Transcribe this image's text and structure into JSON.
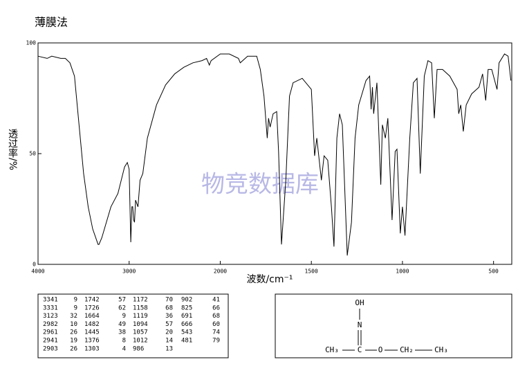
{
  "chart_data": {
    "type": "line",
    "title": "薄膜法",
    "xlabel": "波数/cm⁻¹",
    "ylabel": "透过率/%",
    "watermark": "物竞数据库",
    "xlim": [
      4000,
      400
    ],
    "x_scale_break": 2000,
    "xticks": [
      4000,
      3000,
      2000,
      1500,
      1000,
      500
    ],
    "ylim": [
      0,
      100
    ],
    "yticks": [
      0,
      50,
      100
    ],
    "x": [
      4000,
      3900,
      3850,
      3750,
      3700,
      3650,
      3600,
      3550,
      3500,
      3450,
      3400,
      3341,
      3331,
      3300,
      3200,
      3123,
      3050,
      3020,
      3000,
      2982,
      2970,
      2961,
      2950,
      2941,
      2930,
      2903,
      2880,
      2850,
      2800,
      2700,
      2600,
      2500,
      2400,
      2300,
      2200,
      2150,
      2120,
      2100,
      2000,
      1950,
      1900,
      1890,
      1850,
      1800,
      1780,
      1760,
      1742,
      1735,
      1726,
      1710,
      1690,
      1680,
      1664,
      1640,
      1620,
      1600,
      1550,
      1500,
      1482,
      1470,
      1445,
      1430,
      1410,
      1390,
      1376,
      1360,
      1345,
      1330,
      1303,
      1280,
      1260,
      1240,
      1200,
      1180,
      1172,
      1165,
      1158,
      1140,
      1119,
      1110,
      1094,
      1080,
      1057,
      1040,
      1030,
      1012,
      1000,
      986,
      960,
      940,
      920,
      902,
      880,
      860,
      840,
      825,
      810,
      780,
      740,
      700,
      691,
      680,
      666,
      650,
      620,
      580,
      560,
      543,
      530,
      510,
      481,
      470,
      440,
      420,
      405
    ],
    "series": [
      {
        "name": "spectrum",
        "color": "#000000",
        "values": [
          94,
          93,
          94,
          93,
          93,
          91,
          85,
          63,
          41,
          26,
          16,
          9,
          9,
          12,
          26,
          32,
          44,
          46,
          43,
          10,
          26,
          26,
          20,
          19,
          29,
          26,
          38,
          41,
          57,
          72,
          81,
          86,
          89,
          91,
          92,
          93,
          90,
          92,
          95,
          95,
          93,
          91,
          94,
          94,
          88,
          76,
          57,
          66,
          62,
          68,
          69,
          51,
          9,
          38,
          76,
          82,
          84,
          79,
          49,
          57,
          38,
          49,
          47,
          26,
          8,
          57,
          68,
          63,
          4,
          19,
          57,
          72,
          83,
          85,
          70,
          80,
          68,
          82,
          36,
          63,
          57,
          66,
          20,
          51,
          52,
          14,
          26,
          13,
          57,
          82,
          84,
          41,
          85,
          92,
          91,
          66,
          88,
          88,
          85,
          79,
          68,
          72,
          60,
          72,
          77,
          80,
          86,
          74,
          88,
          88,
          79,
          91,
          95,
          94,
          83
        ]
      }
    ],
    "peaks": [
      [
        [
          3341,
          9
        ],
        [
          3331,
          9
        ],
        [
          3123,
          32
        ],
        [
          2982,
          10
        ],
        [
          2961,
          26
        ],
        [
          2941,
          19
        ],
        [
          2903,
          26
        ]
      ],
      [
        [
          1742,
          57
        ],
        [
          1726,
          62
        ],
        [
          1664,
          9
        ],
        [
          1482,
          49
        ],
        [
          1445,
          38
        ],
        [
          1376,
          8
        ],
        [
          1303,
          4
        ]
      ],
      [
        [
          1172,
          70
        ],
        [
          1158,
          68
        ],
        [
          1119,
          36
        ],
        [
          1094,
          57
        ],
        [
          1057,
          20
        ],
        [
          1012,
          14
        ],
        [
          986,
          13
        ]
      ],
      [
        [
          902,
          41
        ],
        [
          825,
          66
        ],
        [
          691,
          68
        ],
        [
          666,
          60
        ],
        [
          543,
          74
        ],
        [
          481,
          79
        ]
      ]
    ],
    "molecule": {
      "top": "OH",
      "middle": "N",
      "left": "CH₃",
      "center": "C",
      "oxygen": "O",
      "methylene": "CH₂",
      "right": "CH₃"
    }
  }
}
